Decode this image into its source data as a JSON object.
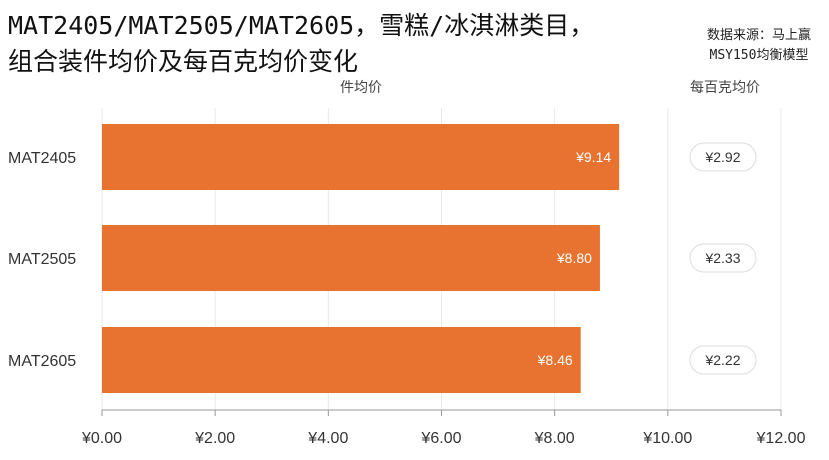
{
  "header": {
    "title_line1": "MAT2405/MAT2505/MAT2605，雪糕/冰淇淋类目，",
    "title_line2": "组合装件均价及每百克均价变化",
    "source_line1": "数据来源：马上赢",
    "source_line2": "MSY150均衡模型"
  },
  "colors": {
    "bar": "#E8722F",
    "grid": "#e9e9e9",
    "pill_border": "#dddddd",
    "text": "#333333"
  },
  "chart_data": {
    "type": "bar",
    "orientation": "horizontal",
    "categories": [
      "MAT2405",
      "MAT2505",
      "MAT2605"
    ],
    "series": [
      {
        "name": "件均价",
        "values": [
          9.14,
          8.8,
          8.46
        ],
        "labels": [
          "¥9.14",
          "¥8.80",
          "¥8.46"
        ]
      },
      {
        "name": "每百克均价",
        "values": [
          2.92,
          2.33,
          2.22
        ],
        "labels": [
          "¥2.92",
          "¥2.33",
          "¥2.22"
        ]
      }
    ],
    "xlim": [
      0,
      12
    ],
    "xticks": [
      "¥0.00",
      "¥2.00",
      "¥4.00",
      "¥6.00",
      "¥8.00",
      "¥10.00",
      "¥12.00"
    ],
    "grid": true,
    "column_headers": [
      "件均价",
      "每百克均价"
    ]
  }
}
